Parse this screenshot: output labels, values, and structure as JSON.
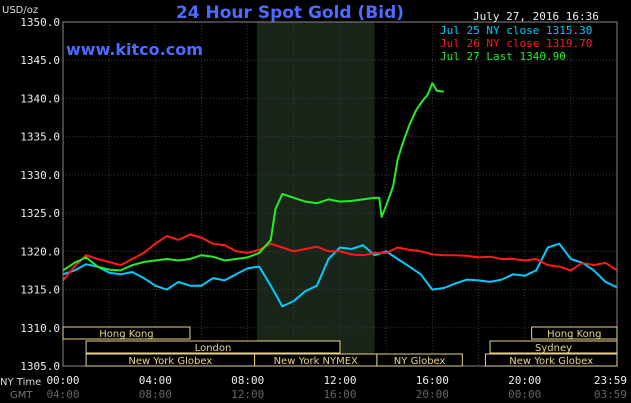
{
  "chart_data": {
    "type": "line",
    "title": "24 Hour Spot Gold (Bid)",
    "unit_label": "USD/oz",
    "site": "www.kitco.com",
    "timestamp": "July 27, 2016 16:36",
    "ylim": [
      1305,
      1350
    ],
    "y_ticks": [
      "1305.0",
      "1310.0",
      "1315.0",
      "1320.0",
      "1325.0",
      "1330.0",
      "1335.0",
      "1340.0",
      "1345.0",
      "1350.0"
    ],
    "x_row_labels": {
      "ny": "NY Time",
      "gmt": "GMT"
    },
    "x_ticks_ny": [
      "00:00",
      "04:00",
      "08:00",
      "12:00",
      "16:00",
      "20:00",
      "23:59"
    ],
    "x_ticks_gmt": [
      "04:00",
      "08:00",
      "12:00",
      "16:00",
      "20:00",
      "00:00",
      "03:59"
    ],
    "x_hours": [
      0,
      4,
      8,
      12,
      16,
      20,
      24
    ],
    "session_shade": [
      8.4,
      13.5
    ],
    "grid": true,
    "legend": [
      {
        "label": "Jul 25 NY close 1315.30",
        "color": "#00ccff"
      },
      {
        "label": "Jul 26 NY close 1319.70",
        "color": "#ff1a1a"
      },
      {
        "label": "Jul 27 Last 1340.90",
        "color": "#22ee22"
      }
    ],
    "markets": [
      {
        "label": "Hong Kong",
        "row": 0,
        "start": 0.0,
        "end": 5.5
      },
      {
        "label": "Hong Kong",
        "row": 0,
        "start": 20.3,
        "end": 24.0
      },
      {
        "label": "London",
        "row": 1,
        "start": 1.0,
        "end": 12.0
      },
      {
        "label": "Sydney",
        "row": 1,
        "start": 18.5,
        "end": 24.0
      },
      {
        "label": "New York Globex",
        "row": 2,
        "start": 1.0,
        "end": 8.3
      },
      {
        "label": "New York NYMEX",
        "row": 2,
        "start": 8.3,
        "end": 13.6
      },
      {
        "label": "NY Globex",
        "row": 2,
        "start": 13.6,
        "end": 17.3
      },
      {
        "label": "New York Globex",
        "row": 2,
        "start": 18.3,
        "end": 24.0
      }
    ],
    "series": [
      {
        "name": "Jul 25 NY close 1315.30",
        "color": "#00ccff",
        "x": [
          0,
          0.5,
          1,
          1.5,
          2,
          2.5,
          3,
          3.5,
          4,
          4.5,
          5,
          5.5,
          6,
          6.5,
          7,
          7.5,
          8,
          8.5,
          9,
          9.5,
          10,
          10.5,
          11,
          11.5,
          12,
          12.5,
          13,
          13.5,
          14,
          14.5,
          15,
          15.5,
          16,
          16.5,
          17,
          17.5,
          18,
          18.5,
          19,
          19.5,
          20,
          20.5,
          21,
          21.5,
          22,
          22.5,
          23,
          23.5,
          24
        ],
        "values": [
          1317.0,
          1317.5,
          1318.3,
          1318.0,
          1317.2,
          1317.0,
          1317.3,
          1316.5,
          1315.5,
          1315.0,
          1316.0,
          1315.5,
          1315.5,
          1316.5,
          1316.2,
          1317.0,
          1317.8,
          1318.0,
          1315.5,
          1312.8,
          1313.5,
          1314.8,
          1315.5,
          1319.0,
          1320.5,
          1320.3,
          1320.8,
          1319.5,
          1320.0,
          1319.0,
          1318.0,
          1317.0,
          1315.0,
          1315.2,
          1315.8,
          1316.3,
          1316.2,
          1316.0,
          1316.3,
          1317.0,
          1316.8,
          1317.5,
          1320.5,
          1321.0,
          1319.0,
          1318.5,
          1317.5,
          1316.0,
          1315.3
        ]
      },
      {
        "name": "Jul 26 NY close 1319.70",
        "color": "#ff1a1a",
        "x": [
          0,
          0.5,
          1,
          1.5,
          2,
          2.5,
          3,
          3.5,
          4,
          4.5,
          5,
          5.5,
          6,
          6.5,
          7,
          7.5,
          8,
          8.5,
          9,
          9.5,
          10,
          10.5,
          11,
          11.5,
          12,
          12.5,
          13,
          13.5,
          14,
          14.5,
          15,
          15.5,
          16,
          16.5,
          17,
          17.5,
          18,
          18.5,
          19,
          19.5,
          20,
          20.5,
          21,
          21.5,
          22,
          22.5,
          23,
          23.5,
          24
        ],
        "values": [
          1316.2,
          1318.0,
          1319.5,
          1319.0,
          1318.6,
          1318.2,
          1319.0,
          1319.8,
          1321.0,
          1322.0,
          1321.5,
          1322.2,
          1321.8,
          1321.0,
          1320.8,
          1320.0,
          1319.8,
          1320.2,
          1321.0,
          1320.5,
          1320.0,
          1320.3,
          1320.6,
          1320.0,
          1320.0,
          1319.6,
          1319.5,
          1319.8,
          1319.8,
          1320.5,
          1320.2,
          1320.0,
          1319.6,
          1319.5,
          1319.5,
          1319.4,
          1319.2,
          1319.3,
          1319.0,
          1319.0,
          1318.8,
          1319.0,
          1318.2,
          1318.0,
          1317.5,
          1318.5,
          1318.2,
          1318.5,
          1317.5
        ]
      },
      {
        "name": "Jul 27 Last 1340.90",
        "color": "#22ee22",
        "x": [
          0,
          0.5,
          1,
          1.5,
          2,
          2.5,
          3,
          3.5,
          4,
          4.5,
          5,
          5.5,
          6,
          6.5,
          7,
          7.5,
          8,
          8.5,
          9,
          9.2,
          9.5,
          10,
          10.5,
          11,
          11.5,
          12,
          12.5,
          13,
          13.5,
          13.7,
          13.8,
          14,
          14.3,
          14.5,
          14.7,
          15,
          15.3,
          15.6,
          15.8,
          16,
          16.2,
          16.5
        ],
        "values": [
          1317.5,
          1318.5,
          1319.2,
          1318.0,
          1317.6,
          1317.5,
          1318.2,
          1318.6,
          1318.8,
          1319.0,
          1318.8,
          1319.0,
          1319.5,
          1319.3,
          1318.8,
          1319.0,
          1319.2,
          1319.8,
          1321.5,
          1325.5,
          1327.5,
          1327.0,
          1326.5,
          1326.3,
          1326.8,
          1326.5,
          1326.6,
          1326.8,
          1327.0,
          1327.0,
          1324.5,
          1326.0,
          1328.5,
          1332.0,
          1334.0,
          1336.5,
          1338.5,
          1339.8,
          1340.5,
          1342.0,
          1341.0,
          1340.9
        ]
      }
    ]
  }
}
